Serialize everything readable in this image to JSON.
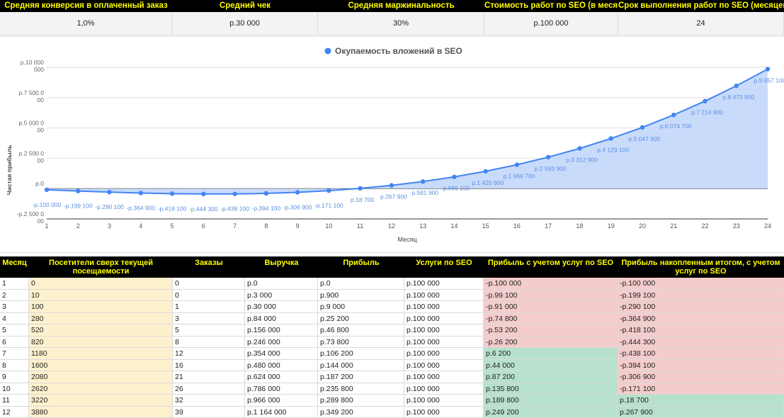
{
  "summary": {
    "headers": [
      "Средняя конверсия в оплаченный заказ",
      "Средний чек",
      "Средняя маржинальность",
      "Стоимость работ по SEO (в месяц)",
      "Срок выполнения работ по SEO (месяцев)"
    ],
    "values": [
      "1,0%",
      "р.30 000",
      "30%",
      "р.100 000",
      "24"
    ]
  },
  "chart_data": {
    "type": "area",
    "title": "Окупаемость вложений в SEO",
    "legend_position": "top",
    "xlabel": "Месяц",
    "ylabel": "Чистая прибыль",
    "x": [
      1,
      2,
      3,
      4,
      5,
      6,
      7,
      8,
      9,
      10,
      11,
      12,
      13,
      14,
      15,
      16,
      17,
      18,
      19,
      20,
      21,
      22,
      23,
      24
    ],
    "xlim": [
      1,
      24
    ],
    "ylim": [
      -2500000,
      10000000
    ],
    "y_ticks": [
      {
        "value": 10000000,
        "label": [
          "р.10 000",
          "000"
        ]
      },
      {
        "value": 7500000,
        "label": [
          "р.7 500 0",
          "00"
        ]
      },
      {
        "value": 5000000,
        "label": [
          "р.5 000 0",
          "00"
        ]
      },
      {
        "value": 2500000,
        "label": [
          "р.2 500 0",
          "00"
        ]
      },
      {
        "value": 0,
        "label": [
          "р.0",
          ""
        ]
      },
      {
        "value": -2500000,
        "label": [
          "-р.2 500 0",
          "00"
        ]
      }
    ],
    "series": [
      {
        "name": "Окупаемость вложений в SEO",
        "color": "#4285f4",
        "fill": "#c6d9fb",
        "values": [
          -100000,
          -199100,
          -290100,
          -364900,
          -418100,
          -444300,
          -438100,
          -394100,
          -306900,
          -171100,
          18700,
          267900,
          581900,
          966100,
          1425900,
          1966700,
          2593900,
          3312900,
          4129100,
          5047900,
          6074700,
          7214900,
          8473900,
          9857100
        ],
        "labels": [
          "-р.100 000",
          "-р.199 100",
          "-р.290 100",
          "-р.364 900",
          "-р.418 100",
          "-р.444 300",
          "-р.438 100",
          "-р.394 100",
          "-р.306 900",
          "-р.171 100",
          "р.18 700",
          "р.267 900",
          "р.581 900",
          "р.966 100",
          "р.1 425 900",
          "р.1 966 700",
          "р.2 593 900",
          "р.3 312 900",
          "р.4 129 100",
          "р.5 047 900",
          "р.6 074 700",
          "р.7 214 900",
          "р.8 473 900",
          "р.9 857 100"
        ]
      }
    ],
    "grid": true
  },
  "table": {
    "headers": [
      "Месяц",
      "Посетители сверх текущей посещаемости",
      "Заказы",
      "Выручка",
      "Прибыль",
      "Услуги по SEO",
      "Прибыль с учетом услуг по SEO",
      "Прибыль накопленным итогом, с учетом услуг по SEO"
    ],
    "rows": [
      [
        "1",
        "0",
        "0",
        "р.0",
        "р.0",
        "р.100 000",
        "-р.100 000",
        "-р.100 000"
      ],
      [
        "2",
        "10",
        "0",
        "р.3 000",
        "р.900",
        "р.100 000",
        "-р.99 100",
        "-р.199 100"
      ],
      [
        "3",
        "100",
        "1",
        "р.30 000",
        "р.9 000",
        "р.100 000",
        "-р.91 000",
        "-р.290 100"
      ],
      [
        "4",
        "280",
        "3",
        "р.84 000",
        "р.25 200",
        "р.100 000",
        "-р.74 800",
        "-р.364 900"
      ],
      [
        "5",
        "520",
        "5",
        "р.156 000",
        "р.46 800",
        "р.100 000",
        "-р.53 200",
        "-р.418 100"
      ],
      [
        "6",
        "820",
        "8",
        "р.246 000",
        "р.73 800",
        "р.100 000",
        "-р.26 200",
        "-р.444 300"
      ],
      [
        "7",
        "1180",
        "12",
        "р.354 000",
        "р.106 200",
        "р.100 000",
        "р.6 200",
        "-р.438 100"
      ],
      [
        "8",
        "1600",
        "16",
        "р.480 000",
        "р.144 000",
        "р.100 000",
        "р.44 000",
        "-р.394 100"
      ],
      [
        "9",
        "2080",
        "21",
        "р.624 000",
        "р.187 200",
        "р.100 000",
        "р.87 200",
        "-р.306 900"
      ],
      [
        "10",
        "2620",
        "26",
        "р.786 000",
        "р.235 800",
        "р.100 000",
        "р.135 800",
        "-р.171 100"
      ],
      [
        "11",
        "3220",
        "32",
        "р.966 000",
        "р.289 800",
        "р.100 000",
        "р.189 800",
        "р.18 700"
      ],
      [
        "12",
        "3880",
        "39",
        "р.1 164 000",
        "р.349 200",
        "р.100 000",
        "р.249 200",
        "р.267 900"
      ]
    ]
  }
}
